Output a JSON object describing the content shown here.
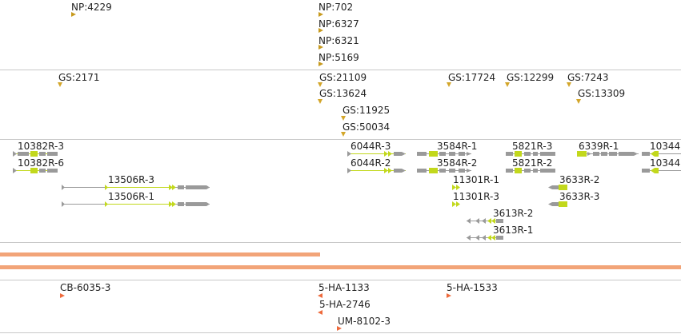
{
  "colors": {
    "divider": "#c8c8c8",
    "np_marker": "#c79a1e",
    "gs_marker": "#d3a62a",
    "ha_marker": "#ee6a3c",
    "exon_gray": "#9a9a9a",
    "exon_green": "#c2d81c",
    "coverage_orange": "#f2a478"
  },
  "np_track": {
    "markers": [
      {
        "label": "NP:4229"
      },
      {
        "label": "NP:702"
      },
      {
        "label": "NP:6327"
      },
      {
        "label": "NP:6321"
      },
      {
        "label": "NP:5169"
      }
    ]
  },
  "gs_track": {
    "markers": [
      {
        "label": "GS:2171"
      },
      {
        "label": "GS:21109"
      },
      {
        "label": "GS:13624"
      },
      {
        "label": "GS:11925"
      },
      {
        "label": "GS:50034"
      },
      {
        "label": "GS:17724"
      },
      {
        "label": "GS:12299"
      },
      {
        "label": "GS:7243"
      },
      {
        "label": "GS:13309"
      }
    ]
  },
  "gene_track": {
    "transcripts": [
      {
        "label": "10382R-3"
      },
      {
        "label": "10382R-6"
      },
      {
        "label": "13506R-3"
      },
      {
        "label": "13506R-1"
      },
      {
        "label": "6044R-3"
      },
      {
        "label": "6044R-2"
      },
      {
        "label": "3584R-1"
      },
      {
        "label": "3584R-2"
      },
      {
        "label": "11301R-1"
      },
      {
        "label": "11301R-3"
      },
      {
        "label": "3613R-2"
      },
      {
        "label": "3613R-1"
      },
      {
        "label": "5821R-3"
      },
      {
        "label": "5821R-2"
      },
      {
        "label": "3633R-2"
      },
      {
        "label": "3633R-3"
      },
      {
        "label": "6339R-1"
      },
      {
        "label": "10344"
      },
      {
        "label": "10344"
      }
    ]
  },
  "ha_track": {
    "markers": [
      {
        "label": "CB-6035-3"
      },
      {
        "label": "5-HA-1133"
      },
      {
        "label": "5-HA-2746"
      },
      {
        "label": "UM-8102-3"
      },
      {
        "label": "5-HA-1533"
      }
    ]
  }
}
